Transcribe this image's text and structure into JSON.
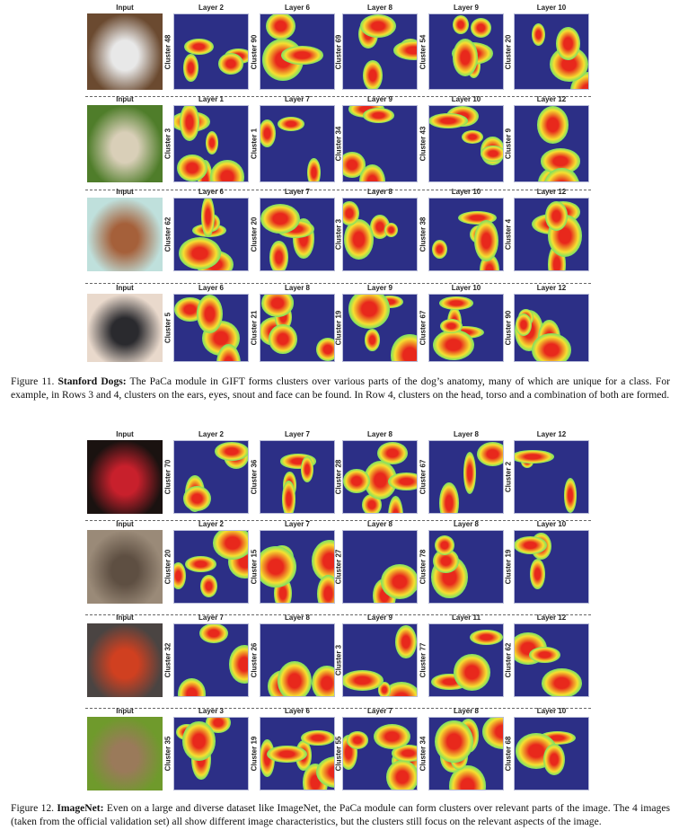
{
  "figure11": {
    "caption_label": "Figure 11.",
    "caption_bold": "Stanford Dogs:",
    "caption_text": " The PaCa module in GIFT forms clusters over various parts of the dog’s anatomy, many of which are unique for a class. For example, in Rows 3 and 4, clusters on the ears, eyes, snout and face can be found. In Row 4, clusters on the head, torso and a combination of both are formed.",
    "rows": [
      {
        "input_label": "Input",
        "input_tint": [
          "#6b4a30",
          "#e8e8e8"
        ],
        "panels": [
          {
            "layer": "Layer 2",
            "cluster": "Cluster 48"
          },
          {
            "layer": "Layer 6",
            "cluster": "Cluster 90"
          },
          {
            "layer": "Layer 8",
            "cluster": "Cluster 69"
          },
          {
            "layer": "Layer 9",
            "cluster": "Cluster 54"
          },
          {
            "layer": "Layer 10",
            "cluster": "Cluster 20"
          }
        ]
      },
      {
        "input_label": "Input",
        "input_tint": [
          "#4f7d2a",
          "#d9cfb8"
        ],
        "panels": [
          {
            "layer": "Layer 1",
            "cluster": "Cluster 3"
          },
          {
            "layer": "Layer 7",
            "cluster": "Cluster 1"
          },
          {
            "layer": "Layer 9",
            "cluster": "Cluster 34"
          },
          {
            "layer": "Layer 10",
            "cluster": "Cluster 43"
          },
          {
            "layer": "Layer 12",
            "cluster": "Cluster 9"
          }
        ]
      },
      {
        "input_label": "Input",
        "input_tint": [
          "#bfe0dc",
          "#a5603a"
        ],
        "panels": [
          {
            "layer": "Layer 6",
            "cluster": "Cluster 62"
          },
          {
            "layer": "Layer 7",
            "cluster": "Cluster 20"
          },
          {
            "layer": "Layer 8",
            "cluster": "Cluster 3"
          },
          {
            "layer": "Layer 10",
            "cluster": "Cluster 38"
          },
          {
            "layer": "Layer 12",
            "cluster": "Cluster 4"
          }
        ]
      },
      {
        "input_label": "Input",
        "input_tint": [
          "#e9d9cc",
          "#2a2a2e"
        ],
        "panels": [
          {
            "layer": "Layer 6",
            "cluster": "Cluster 5"
          },
          {
            "layer": "Layer 8",
            "cluster": "Cluster 21"
          },
          {
            "layer": "Layer 9",
            "cluster": "Cluster 19"
          },
          {
            "layer": "Layer 10",
            "cluster": "Cluster 67"
          },
          {
            "layer": "Layer 12",
            "cluster": "Cluster 90"
          }
        ]
      }
    ]
  },
  "figure12": {
    "caption_label": "Figure 12.",
    "caption_bold": "ImageNet:",
    "caption_text": " Even on a large and diverse dataset like ImageNet, the PaCa module can form clusters over relevant parts of the image. The 4 images (taken from the official validation set) all show different image characteristics, but the clusters still focus on the relevant aspects of the image.",
    "rows": [
      {
        "input_label": "Input",
        "input_tint": [
          "#1a1210",
          "#c8202c"
        ],
        "panels": [
          {
            "layer": "Layer 2",
            "cluster": "Cluster 70"
          },
          {
            "layer": "Layer 7",
            "cluster": "Cluster 36"
          },
          {
            "layer": "Layer 8",
            "cluster": "Cluster 28"
          },
          {
            "layer": "Layer 8",
            "cluster": "Cluster 67"
          },
          {
            "layer": "Layer 12",
            "cluster": "Cluster 2"
          }
        ]
      },
      {
        "input_label": "Input",
        "input_tint": [
          "#9a8a78",
          "#5e4f42"
        ],
        "panels": [
          {
            "layer": "Layer 2",
            "cluster": "Cluster 20"
          },
          {
            "layer": "Layer 7",
            "cluster": "Cluster 15"
          },
          {
            "layer": "Layer 8",
            "cluster": "Cluster 27"
          },
          {
            "layer": "Layer 8",
            "cluster": "Cluster 78"
          },
          {
            "layer": "Layer 10",
            "cluster": "Cluster 19"
          }
        ]
      },
      {
        "input_label": "Input",
        "input_tint": [
          "#4a4442",
          "#d04020"
        ],
        "panels": [
          {
            "layer": "Layer 7",
            "cluster": "Cluster 32"
          },
          {
            "layer": "Layer 8",
            "cluster": "Cluster 26"
          },
          {
            "layer": "Layer 9",
            "cluster": "Cluster 3"
          },
          {
            "layer": "Layer 11",
            "cluster": "Cluster 77"
          },
          {
            "layer": "Layer 12",
            "cluster": "Cluster 62"
          }
        ]
      },
      {
        "input_label": "Input",
        "input_tint": [
          "#6f9a2c",
          "#9a7a5a"
        ],
        "panels": [
          {
            "layer": "Layer 3",
            "cluster": "Cluster 35"
          },
          {
            "layer": "Layer 6",
            "cluster": "Cluster 19"
          },
          {
            "layer": "Layer 7",
            "cluster": "Cluster 55"
          },
          {
            "layer": "Layer 8",
            "cluster": "Cluster 34"
          },
          {
            "layer": "Layer 10",
            "cluster": "Cluster 68"
          }
        ]
      }
    ]
  },
  "colors": {
    "heatmap_base": "#2c2f86",
    "heat_hot": "#e8281c",
    "heat_mid": "#f5e030",
    "heat_cool": "#6ee06a"
  }
}
